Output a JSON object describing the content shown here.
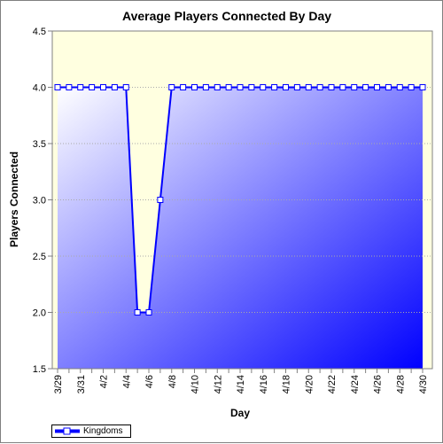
{
  "chart_data": {
    "type": "line",
    "title": "Average Players Connected By Day",
    "xlabel": "Day",
    "ylabel": "Players Connected",
    "ylim": [
      1.5,
      4.5
    ],
    "yticks": [
      "1.5",
      "2.0",
      "2.5",
      "3.0",
      "3.5",
      "4.0",
      "4.5"
    ],
    "x": [
      "3/29",
      "3/30",
      "3/31",
      "4/1",
      "4/2",
      "4/3",
      "4/4",
      "4/5",
      "4/6",
      "4/7",
      "4/8",
      "4/9",
      "4/10",
      "4/11",
      "4/12",
      "4/13",
      "4/14",
      "4/15",
      "4/16",
      "4/17",
      "4/18",
      "4/19",
      "4/20",
      "4/21",
      "4/22",
      "4/23",
      "4/24",
      "4/25",
      "4/26",
      "4/27",
      "4/28",
      "4/29",
      "4/30"
    ],
    "xtick_labels": [
      "3/29",
      "3/31",
      "4/2",
      "4/4",
      "4/6",
      "4/8",
      "4/10",
      "4/12",
      "4/14",
      "4/16",
      "4/18",
      "4/20",
      "4/22",
      "4/24",
      "4/26",
      "4/28",
      "4/30"
    ],
    "series": [
      {
        "name": "Kingdoms",
        "color": "#0000ff",
        "values": [
          4,
          4,
          4,
          4,
          4,
          4,
          4,
          2,
          2,
          3,
          4,
          4,
          4,
          4,
          4,
          4,
          4,
          4,
          4,
          4,
          4,
          4,
          4,
          4,
          4,
          4,
          4,
          4,
          4,
          4,
          4,
          4,
          4
        ]
      }
    ],
    "plot_background": "#ffffe0",
    "fill_gradient": [
      "#ffffff",
      "#0000ff"
    ],
    "grid": true,
    "legend_position": "bottom-left"
  }
}
